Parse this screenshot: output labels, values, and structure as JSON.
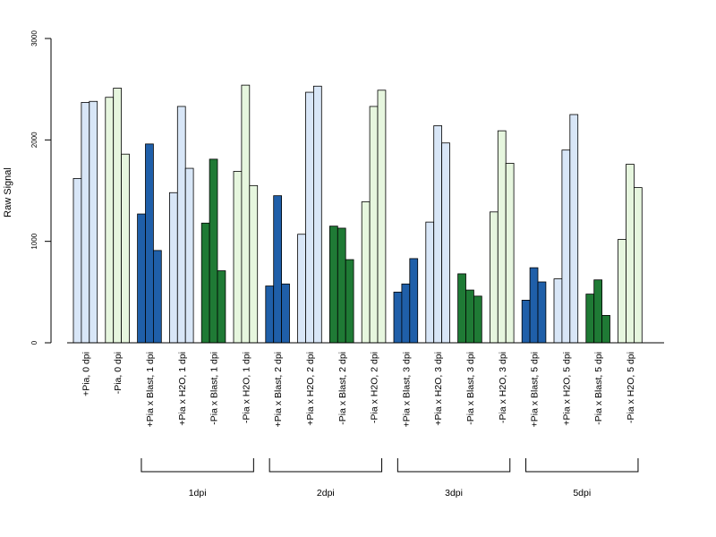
{
  "chart_data": {
    "type": "bar",
    "ylabel": "Raw Signal",
    "ylim": [
      0,
      3000
    ],
    "yticks": [
      0,
      1000,
      2000,
      3000
    ],
    "ytick_labels": [
      "0",
      "1000",
      "2000",
      "3000"
    ],
    "categories": [
      "+Pia, 0 dpi",
      "-Pia, 0 dpi",
      "+Pia x Blast, 1 dpi",
      "+Pia x H2O, 1 dpi",
      "-Pia x Blast, 1 dpi",
      "-Pia x H2O, 1 dpi",
      "+Pia x Blast, 2 dpi",
      "+Pia x H2O, 2 dpi",
      "-Pia x Blast, 2 dpi",
      "-Pia x H2O, 2 dpi",
      "+Pia x Blast, 3 dpi",
      "+Pia x H2O, 3 dpi",
      "-Pia x Blast, 3 dpi",
      "-Pia x H2O, 3 dpi",
      "+Pia x Blast, 5 dpi",
      "+Pia x H2O, 5 dpi",
      "-Pia x Blast, 5 dpi",
      "-Pia x H2O, 5 dpi"
    ],
    "values": [
      [
        1620,
        2370,
        2380
      ],
      [
        2420,
        2510,
        1860
      ],
      [
        1270,
        1960,
        910
      ],
      [
        1480,
        2330,
        1720
      ],
      [
        1180,
        1810,
        710
      ],
      [
        1690,
        2540,
        1550
      ],
      [
        560,
        1450,
        580
      ],
      [
        1070,
        2470,
        2530
      ],
      [
        1150,
        1130,
        820
      ],
      [
        1390,
        2330,
        2490
      ],
      [
        500,
        580,
        830
      ],
      [
        1190,
        2140,
        1970
      ],
      [
        680,
        520,
        460
      ],
      [
        1290,
        2090,
        1770
      ],
      [
        420,
        740,
        600
      ],
      [
        630,
        1900,
        2250
      ],
      [
        480,
        620,
        270
      ],
      [
        1020,
        1760,
        1530
      ]
    ],
    "category_colors": [
      "#d8e6f7",
      "#e6f6de",
      "#1f5fa9",
      "#d8e6f7",
      "#1f7a35",
      "#e6f6de",
      "#1f5fa9",
      "#d8e6f7",
      "#1f7a35",
      "#e6f6de",
      "#1f5fa9",
      "#d8e6f7",
      "#1f7a35",
      "#e6f6de",
      "#1f5fa9",
      "#d8e6f7",
      "#1f7a35",
      "#e6f6de"
    ],
    "groups": [
      {
        "label": "1dpi",
        "from": 2,
        "to": 5
      },
      {
        "label": "2dpi",
        "from": 6,
        "to": 9
      },
      {
        "label": "3dpi",
        "from": 10,
        "to": 13
      },
      {
        "label": "5dpi",
        "from": 14,
        "to": 17
      }
    ],
    "grid": false,
    "legend": "none"
  }
}
